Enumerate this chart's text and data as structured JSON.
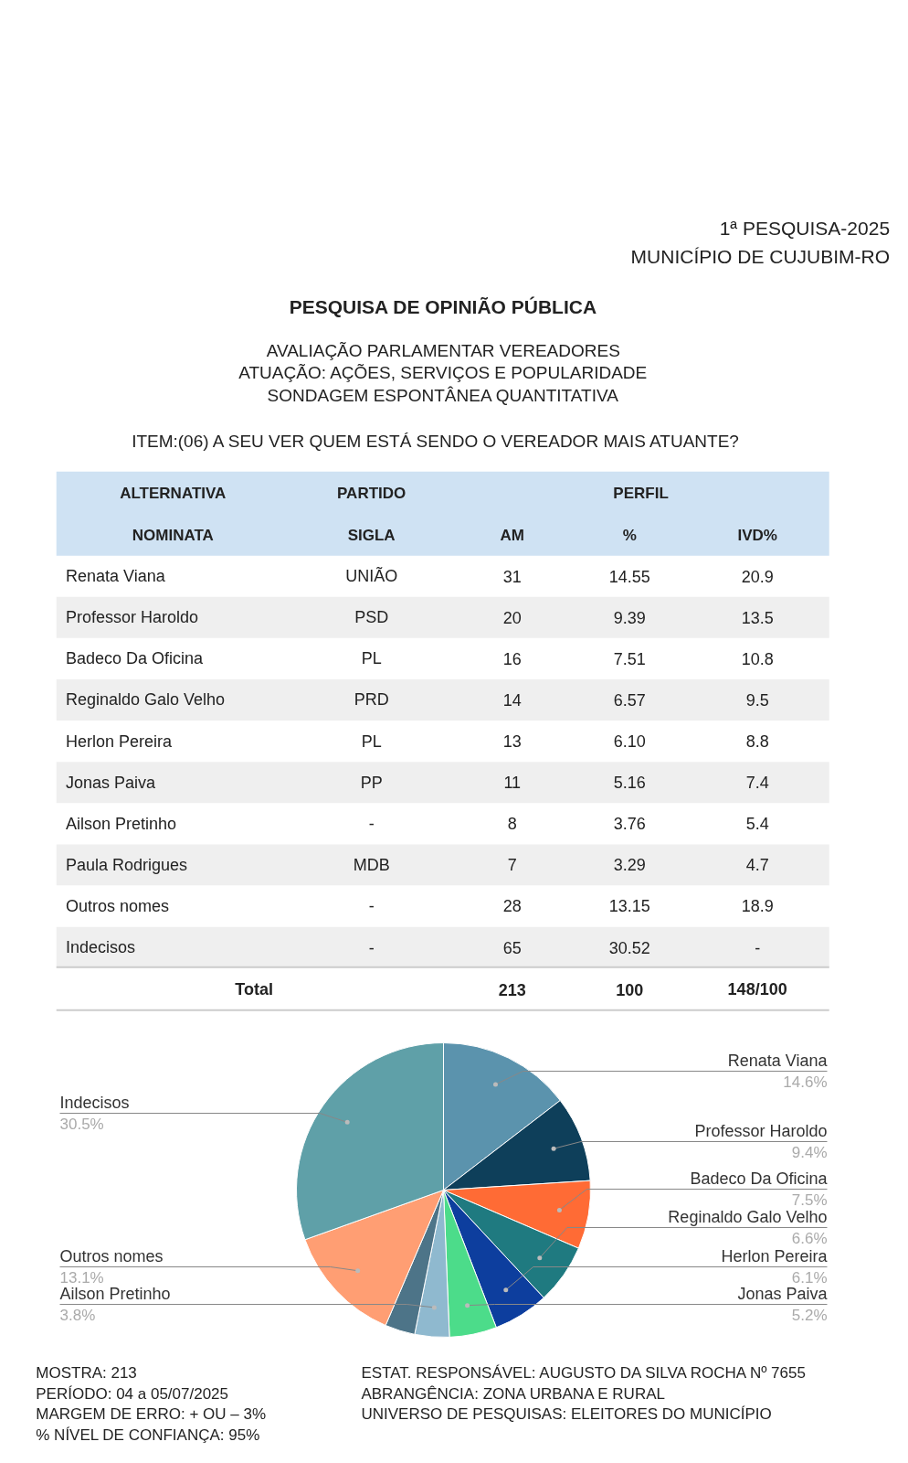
{
  "chart_data": {
    "type": "pie",
    "title": "PESQUISA DE OPINIÃO PÚBLICA",
    "subtitle": "AVALIAÇÃO PARLAMENTAR VEREADORES\nATUAÇÃO: AÇÕES, SERVIÇOS E POPULARIDADE\nSONDAGEM ESPONTÂNEA QUANTITATIVA",
    "categories": [
      "Renata Viana",
      "Professor Haroldo",
      "Badeco Da Oficina",
      "Reginaldo Galo Velho",
      "Herlon Pereira",
      "Jonas Paiva",
      "Ailson Pretinho",
      null,
      "Outros nomes",
      "Indecisos"
    ],
    "values": [
      14.6,
      9.4,
      7.5,
      6.6,
      6.1,
      5.2,
      3.8,
      3.3,
      13.1,
      30.5
    ],
    "value_labels": [
      "14.6%",
      "9.4%",
      "7.5%",
      "6.6%",
      "6.1%",
      "5.2%",
      "3.8%",
      null,
      "13.1%",
      "30.5%"
    ],
    "colors": [
      "#5b93ad",
      "#0e3f5a",
      "#ff6b35",
      "#1f7a80",
      "#0d3e9e",
      "#4cdc8a",
      "#8fb9cf",
      "#4d7488",
      "#ff9e73",
      "#5fa0a8"
    ],
    "annotations": [
      "1ª PESQUISA-2025",
      "MUNICÍPIO DE CUJUBIM-RO",
      "ITEM:(06) A SEU VER QUEM ESTÁ SENDO O VEREADOR MAIS ATUANTE?",
      "ALTERNATIVA",
      "PARTIDO",
      "PERFIL",
      "NOMINATA",
      "SIGLA",
      "AM",
      "%",
      "IVD%",
      "Renata Viana",
      "UNIÃO",
      "31",
      "14.55",
      "20.9",
      "Professor Haroldo",
      "PSD",
      "20",
      "9.39",
      "13.5",
      "Badeco Da Oficina",
      "PL",
      "16",
      "7.51",
      "10.8",
      "Reginaldo Galo Velho",
      "PRD",
      "14",
      "6.57",
      "9.5",
      "Herlon Pereira",
      "PL",
      "13",
      "6.10",
      "8.8",
      "Jonas Paiva",
      "PP",
      "11",
      "5.16",
      "7.4",
      "Ailson Pretinho",
      "-",
      "8",
      "3.76",
      "5.4",
      "Paula Rodrigues",
      "MDB",
      "7",
      "3.29",
      "4.7",
      "Outros nomes",
      "-",
      "28",
      "13.15",
      "18.9",
      "Indecisos",
      "-",
      "65",
      "30.52",
      "-",
      "Total",
      "213",
      "100",
      "148/100",
      "MOSTRA: 213",
      "PERÍODO: 04 a 05/07/2025",
      "MARGEM DE ERRO: + OU – 3%",
      "% NÍVEL DE CONFIANÇA: 95%",
      "ESTAT. RESPONSÁVEL: AUGUSTO DA SILVA ROCHA Nº 7655",
      "ABRANGÊNCIA: ZONA URBANA E RURAL",
      "UNIVERSO DE PESQUISAS: ELEITORES DO MUNICÍPIO"
    ]
  }
}
